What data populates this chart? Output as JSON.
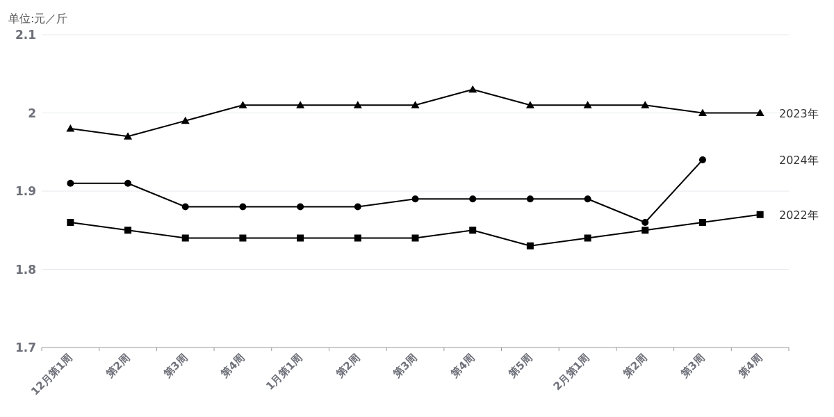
{
  "chart_data": {
    "type": "line",
    "ylabel": "单位:元／斤",
    "categories": [
      "12月第1周",
      "第2周",
      "第3周",
      "第4周",
      "1月第1周",
      "第2周",
      "第3周",
      "第4周",
      "第5周",
      "2月第1周",
      "第2周",
      "第3周",
      "第4周"
    ],
    "series": [
      {
        "name": "2023年",
        "color": "#000000",
        "marker": "triangle",
        "values": [
          1.98,
          1.97,
          1.99,
          2.01,
          2.01,
          2.01,
          2.01,
          2.03,
          2.01,
          2.01,
          2.01,
          2.0,
          2.0
        ]
      },
      {
        "name": "2024年",
        "color": "#000000",
        "marker": "circle",
        "values": [
          1.91,
          1.91,
          1.88,
          1.88,
          1.88,
          1.88,
          1.89,
          1.89,
          1.89,
          1.89,
          1.86,
          1.94,
          null
        ]
      },
      {
        "name": "2022年",
        "color": "#000000",
        "marker": "square",
        "values": [
          1.86,
          1.85,
          1.84,
          1.84,
          1.84,
          1.84,
          1.84,
          1.85,
          1.83,
          1.84,
          1.85,
          1.86,
          1.87
        ]
      }
    ],
    "ylim": [
      1.7,
      2.1
    ],
    "yticks": [
      1.7,
      1.8,
      1.9,
      2,
      2.1
    ],
    "grid": "y",
    "legend": false
  }
}
